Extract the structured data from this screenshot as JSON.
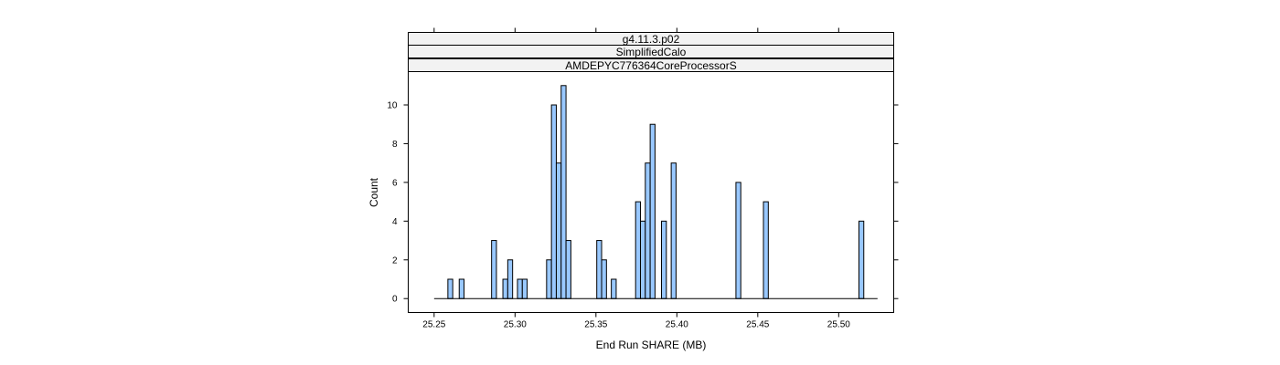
{
  "chart_data": {
    "type": "bar",
    "strips": [
      "g4.11.3.p02",
      "SimplifiedCalo",
      "AMDEPYC776364CoreProcessorS"
    ],
    "xlabel": "End Run SHARE (MB)",
    "ylabel": "Count",
    "xlim": [
      25.234,
      25.534
    ],
    "ylim": [
      -0.72,
      11.72
    ],
    "x_range": [
      25.25,
      25.524
    ],
    "x_ticks": [
      25.25,
      25.3,
      25.35,
      25.4,
      25.45,
      25.5
    ],
    "x_tick_labels": [
      "25.25",
      "25.30",
      "25.35",
      "25.40",
      "25.45",
      "25.50"
    ],
    "y_ticks": [
      0,
      2,
      4,
      6,
      8,
      10
    ],
    "y_tick_labels": [
      "0",
      "2",
      "4",
      "6",
      "8",
      "10"
    ],
    "bin_width": 0.003,
    "bar_color": "#99c8ff",
    "bins": [
      {
        "x": 25.26,
        "count": 1
      },
      {
        "x": 25.267,
        "count": 1
      },
      {
        "x": 25.287,
        "count": 3
      },
      {
        "x": 25.294,
        "count": 1
      },
      {
        "x": 25.297,
        "count": 2
      },
      {
        "x": 25.303,
        "count": 1
      },
      {
        "x": 25.306,
        "count": 1
      },
      {
        "x": 25.321,
        "count": 2
      },
      {
        "x": 25.324,
        "count": 10
      },
      {
        "x": 25.327,
        "count": 7
      },
      {
        "x": 25.33,
        "count": 11
      },
      {
        "x": 25.333,
        "count": 3
      },
      {
        "x": 25.352,
        "count": 3
      },
      {
        "x": 25.355,
        "count": 2
      },
      {
        "x": 25.361,
        "count": 1
      },
      {
        "x": 25.376,
        "count": 5
      },
      {
        "x": 25.379,
        "count": 4
      },
      {
        "x": 25.382,
        "count": 7
      },
      {
        "x": 25.385,
        "count": 9
      },
      {
        "x": 25.392,
        "count": 4
      },
      {
        "x": 25.398,
        "count": 7
      },
      {
        "x": 25.438,
        "count": 6
      },
      {
        "x": 25.455,
        "count": 5
      },
      {
        "x": 25.514,
        "count": 4
      }
    ]
  }
}
